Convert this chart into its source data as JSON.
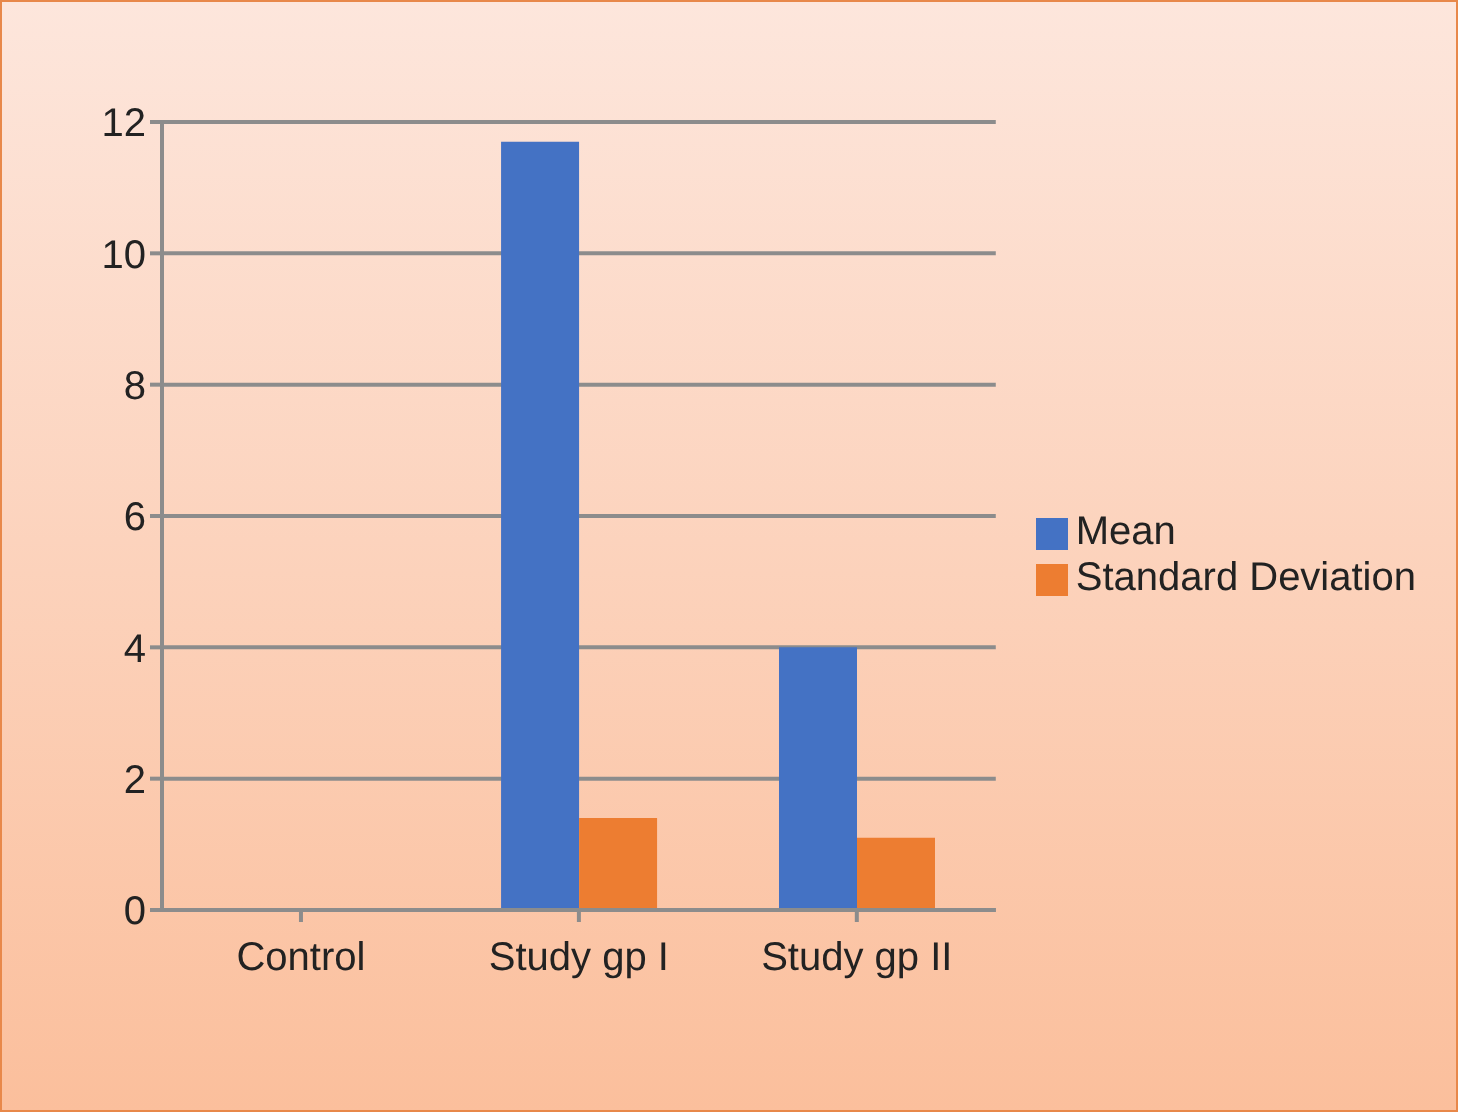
{
  "chart_data": {
    "type": "bar",
    "categories": [
      "Control",
      "Study gp I",
      "Study gp II"
    ],
    "series": [
      {
        "name": "Mean",
        "color": "#4472c4",
        "values": [
          0,
          11.7,
          4.0
        ]
      },
      {
        "name": "Standard Deviation",
        "color": "#ed7d31",
        "values": [
          0,
          1.4,
          1.1
        ]
      }
    ],
    "ylim": [
      0,
      12
    ],
    "yticks": [
      0,
      2,
      4,
      6,
      8,
      10,
      12
    ],
    "grid": "y",
    "legend": "right"
  }
}
